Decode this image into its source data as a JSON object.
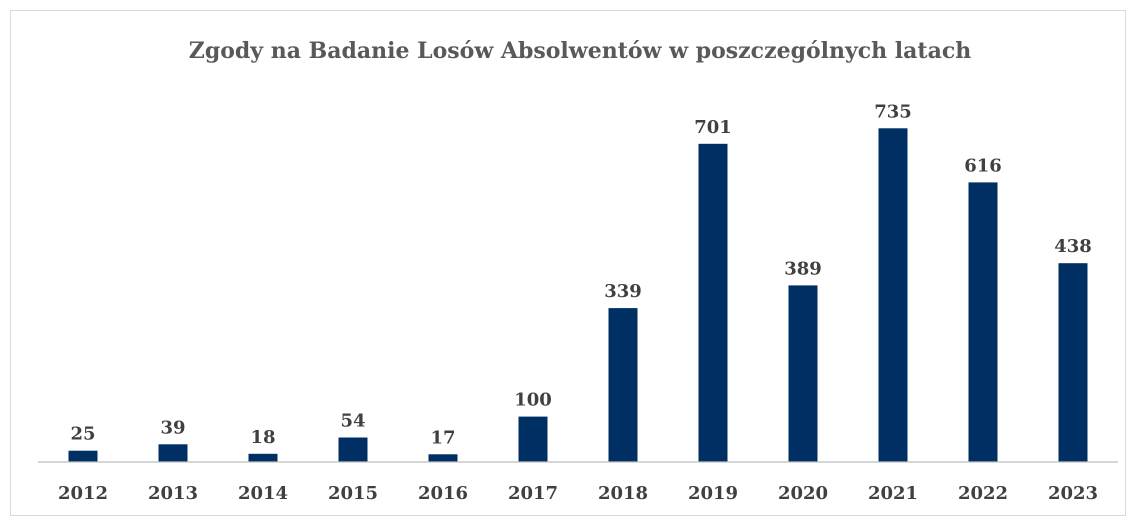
{
  "chart_data": {
    "type": "bar",
    "title": "Zgody na Badanie Losów Absolwentów w poszczególnych latach",
    "categories": [
      "2012",
      "2013",
      "2014",
      "2015",
      "2016",
      "2017",
      "2018",
      "2019",
      "2020",
      "2021",
      "2022",
      "2023"
    ],
    "values": [
      25,
      39,
      18,
      54,
      17,
      100,
      339,
      701,
      389,
      735,
      616,
      438
    ],
    "xlabel": "",
    "ylabel": "",
    "ylim": [
      0,
      760
    ],
    "grid": false,
    "legend": "none",
    "bar_color": "#002f63",
    "axis_color": "#bfbfbf",
    "label_color": "#404040",
    "title_color": "#595959"
  }
}
